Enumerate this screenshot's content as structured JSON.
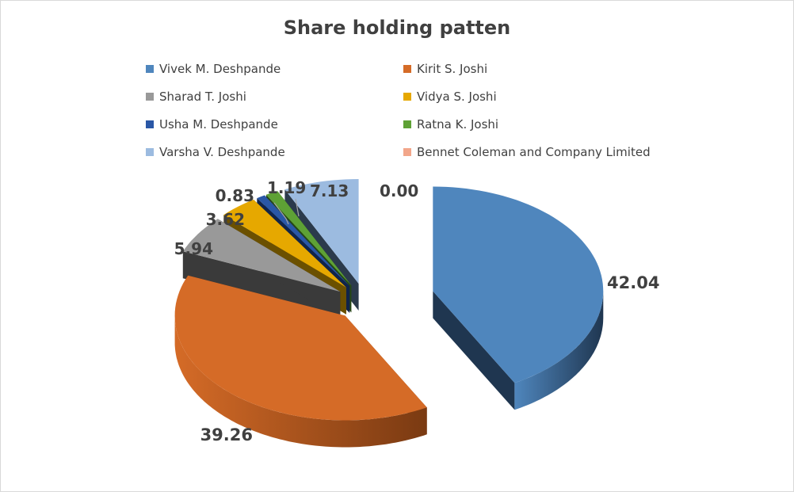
{
  "chart_data": {
    "type": "pie",
    "title": "Share holding patten",
    "legend_placement": "top",
    "series": [
      {
        "name": "Vivek M. Deshpande",
        "value": 42.04,
        "label": "42.04",
        "color": "#4f86bd",
        "side": "#1f3650"
      },
      {
        "name": "Kirit S. Joshi",
        "value": 39.26,
        "label": "39.26",
        "color": "#d56b27",
        "side": "#7a3a12"
      },
      {
        "name": "Sharad T. Joshi",
        "value": 5.94,
        "label": "5.94",
        "color": "#999999",
        "side": "#3a3a3a"
      },
      {
        "name": "Vidya S. Joshi",
        "value": 3.62,
        "label": "3.62",
        "color": "#e6a800",
        "side": "#6b5000"
      },
      {
        "name": "Usha M. Deshpande",
        "value": 0.83,
        "label": "0.83",
        "color": "#2a57a6",
        "side": "#10244a"
      },
      {
        "name": "Ratna K. Joshi",
        "value": 1.19,
        "label": "1.19",
        "color": "#5ea135",
        "side": "#264716"
      },
      {
        "name": "Varsha V. Deshpande",
        "value": 7.13,
        "label": "7.13",
        "color": "#9cbbe0",
        "side": "#2b3a4c"
      },
      {
        "name": "Bennet Coleman and Company Limited",
        "value": 0.0,
        "label": "0.00",
        "color": "#f2a68a",
        "side": "#7a4a38"
      }
    ]
  }
}
